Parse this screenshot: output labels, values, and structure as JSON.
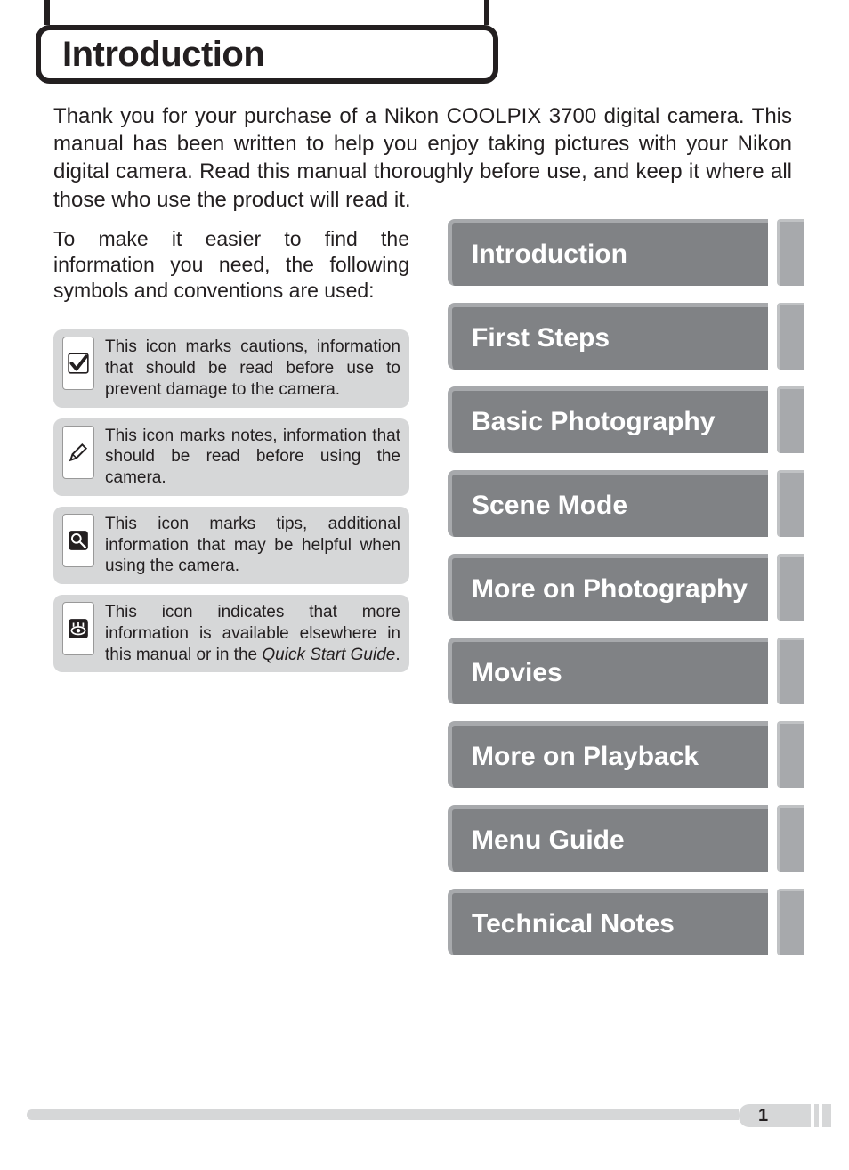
{
  "colors": {
    "text": "#231f20",
    "chapter_bg": "#808285",
    "chapter_border": "#a7a9ac",
    "tab_bg": "#a7a9ac",
    "icon_row_bg": "#d6d7d8",
    "footer_bg": "#d6d7d8",
    "page_bg": "#ffffff"
  },
  "typography": {
    "title_fontsize": 40,
    "body_fontsize": 24,
    "icon_desc_fontsize": 19,
    "chapter_fontsize": 30
  },
  "title": "Introduction",
  "intro_paragraph": "Thank you for your purchase of a Nikon COOLPIX 3700 digital camera.  This manual has been written to help you enjoy taking pictures with your Nikon digital camera.  Read this manual thoroughly before use, and keep it where all those who use the product will read it.",
  "sub_paragraph": "To make it easier to find the information you need, the following symbols and conventions are used:",
  "icons": [
    {
      "name": "caution-icon",
      "glyph": "check",
      "desc": "This icon marks cautions, information that should be read before use to prevent damage to the camera."
    },
    {
      "name": "note-icon",
      "glyph": "pencil",
      "desc": "This icon marks notes, information that should be read before using the camera."
    },
    {
      "name": "tip-icon",
      "glyph": "bulb",
      "desc": "This icon marks tips, additional information that may be helpful when using the camera."
    },
    {
      "name": "reference-icon",
      "glyph": "eye",
      "desc_html": "This icon indicates that more information is available elsewhere in this manual or in the <em>Quick Start Guide</em>."
    }
  ],
  "chapters": [
    "Introduction",
    "First Steps",
    "Basic Photography",
    "Scene Mode",
    "More on Photography",
    "Movies",
    "More on Playback",
    "Menu Guide",
    "Technical Notes"
  ],
  "page_number": "1"
}
